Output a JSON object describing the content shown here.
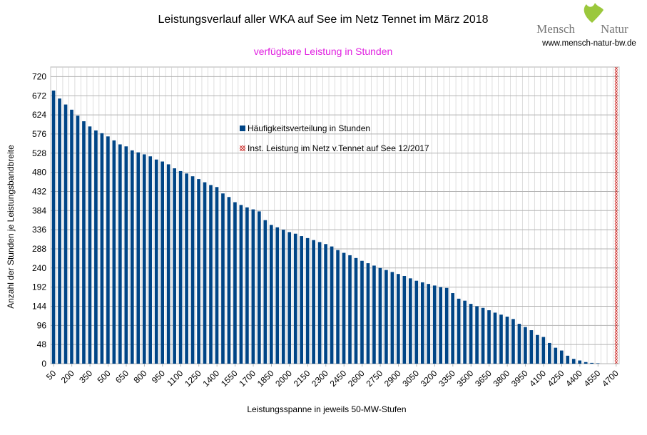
{
  "chart_data": {
    "type": "bar",
    "title": "Leistungsverlauf aller WKA auf See im Netz Tennet im März 2018",
    "subtitle": "verfügbare Leistung in Stunden",
    "x_label": "Leistungsspanne in jeweils 50-MW-Stufen",
    "y_label": "Anzahl der Stunden je Leistungsbandbreite",
    "categories": [
      "50",
      null,
      null,
      "200",
      null,
      null,
      "350",
      null,
      null,
      "500",
      null,
      null,
      "650",
      null,
      null,
      "800",
      null,
      null,
      "950",
      null,
      null,
      "1100",
      null,
      null,
      "1250",
      null,
      null,
      "1400",
      null,
      null,
      "1550",
      null,
      null,
      "1700",
      null,
      null,
      "1850",
      null,
      null,
      "2000",
      null,
      null,
      "2150",
      null,
      null,
      "2300",
      null,
      null,
      "2450",
      null,
      null,
      "2600",
      null,
      null,
      "2750",
      null,
      null,
      "2900",
      null,
      null,
      "3050",
      null,
      null,
      "3200",
      null,
      null,
      "3350",
      null,
      null,
      "3500",
      null,
      null,
      "3650",
      null,
      null,
      "3800",
      null,
      null,
      "3950",
      null,
      null,
      "4100",
      null,
      null,
      "4250",
      null,
      null,
      "4400",
      null,
      null,
      "4550",
      null,
      null,
      "4700"
    ],
    "series": [
      {
        "name": "Häufigkeitsverteilung in Stunden",
        "color": "#004586",
        "values": [
          685,
          665,
          650,
          637,
          622,
          608,
          595,
          585,
          578,
          570,
          560,
          550,
          545,
          535,
          530,
          525,
          520,
          512,
          507,
          500,
          490,
          483,
          477,
          470,
          463,
          455,
          448,
          443,
          427,
          418,
          405,
          398,
          392,
          387,
          382,
          360,
          348,
          342,
          336,
          330,
          326,
          320,
          315,
          310,
          305,
          300,
          294,
          285,
          278,
          272,
          265,
          258,
          252,
          246,
          240,
          235,
          230,
          225,
          220,
          214,
          208,
          204,
          200,
          196,
          192,
          190,
          177,
          163,
          158,
          150,
          144,
          140,
          134,
          128,
          123,
          118,
          112,
          100,
          92,
          84,
          72,
          67,
          52,
          40,
          33,
          20,
          12,
          8,
          4,
          2,
          1,
          0,
          0,
          0
        ]
      },
      {
        "name": "Inst. Leistung im Netz v.Tennet auf See 12/2017",
        "color": "#c9211e",
        "hatch": true,
        "values": [
          null,
          null,
          null,
          null,
          null,
          null,
          null,
          null,
          null,
          null,
          null,
          null,
          null,
          null,
          null,
          null,
          null,
          null,
          null,
          null,
          null,
          null,
          null,
          null,
          null,
          null,
          null,
          null,
          null,
          null,
          null,
          null,
          null,
          null,
          null,
          null,
          null,
          null,
          null,
          null,
          null,
          null,
          null,
          null,
          null,
          null,
          null,
          null,
          null,
          null,
          null,
          null,
          null,
          null,
          null,
          null,
          null,
          null,
          null,
          null,
          null,
          null,
          null,
          null,
          null,
          null,
          null,
          null,
          null,
          null,
          null,
          null,
          null,
          null,
          null,
          null,
          null,
          null,
          null,
          null,
          null,
          null,
          null,
          null,
          null,
          null,
          null,
          null,
          null,
          null,
          null,
          null,
          null,
          744
        ]
      }
    ],
    "ylim": [
      0,
      744
    ],
    "yticks": [
      0,
      48,
      96,
      144,
      192,
      240,
      288,
      336,
      384,
      432,
      480,
      528,
      576,
      624,
      672,
      720
    ],
    "grid": true
  },
  "logo": {
    "left": "Mensch",
    "right": "Natur",
    "url": "www.mensch-natur-bw.de"
  }
}
